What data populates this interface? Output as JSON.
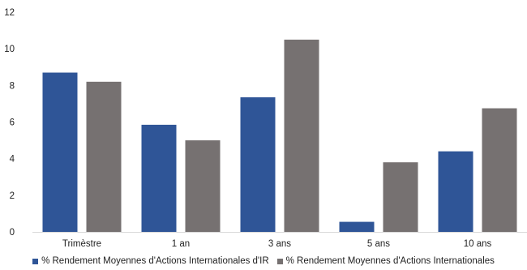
{
  "chart_data": {
    "type": "bar",
    "categories": [
      "Trimèstre",
      "1 an",
      "3 ans",
      "5 ans",
      "10 ans"
    ],
    "series": [
      {
        "name": "% Rendement Moyennes d'Actions Internationales d'IR",
        "values": [
          8.7,
          5.85,
          7.35,
          0.55,
          4.4
        ],
        "color": "#2f5597"
      },
      {
        "name": "% Rendement Moyennes d'Actions Internationales",
        "values": [
          8.2,
          5.0,
          10.5,
          3.8,
          6.75
        ],
        "color": "#767171"
      }
    ],
    "ylim": [
      0,
      12
    ],
    "yticks": [
      0,
      2,
      4,
      6,
      8,
      10,
      12
    ],
    "title": "",
    "xlabel": "",
    "ylabel": "",
    "grid": false,
    "legend_position": "bottom"
  }
}
